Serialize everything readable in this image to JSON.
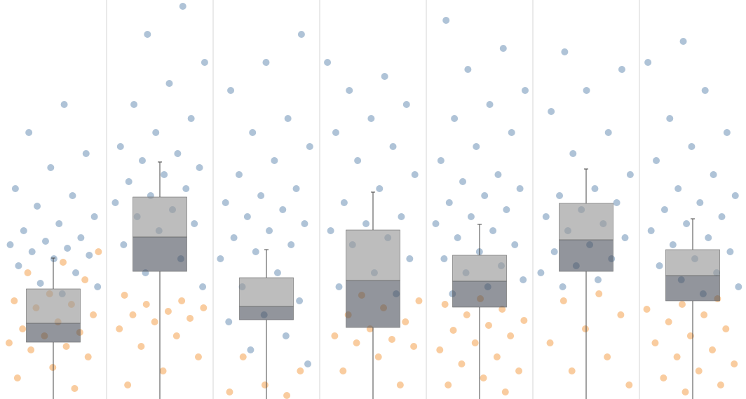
{
  "chart_data": {
    "type": "box",
    "ylim": [
      0,
      569
    ],
    "panels": [
      {
        "box": {
          "whisker_low": 0,
          "q1": 81,
          "median": 108,
          "q3": 157,
          "whisker_high": 201
        },
        "series": [
          {
            "color": "#4e79a7",
            "values": [
              420,
              380,
              350,
              330,
              300,
              290,
              275,
              260,
              250,
              240,
              230,
              225,
              220,
              215,
              210,
              205,
              200,
              190,
              180,
              165,
              160,
              150
            ]
          },
          {
            "color": "#f28e2b",
            "values": [
              210,
              195,
              180,
              170,
              150,
              140,
              135,
              130,
              120,
              110,
              100,
              95,
              90,
              80,
              75,
              70,
              60,
              45,
              30,
              15
            ]
          }
        ]
      },
      {
        "box": {
          "whisker_low": 0,
          "q1": 182,
          "median": 231,
          "q3": 288,
          "whisker_high": 338
        },
        "series": [
          {
            "color": "#4e79a7",
            "values": [
              560,
              520,
              480,
              450,
              420,
              400,
              380,
              360,
              350,
              340,
              330,
              320,
              310,
              300,
              290,
              280,
              270,
              260,
              250,
              240,
              220,
              200,
              180,
              160
            ]
          },
          {
            "color": "#f28e2b",
            "values": [
              148,
              140,
              135,
              130,
              125,
              120,
              115,
              110,
              100,
              90,
              75,
              60,
              40,
              20
            ]
          }
        ]
      },
      {
        "box": {
          "whisker_low": 0,
          "q1": 113,
          "median": 132,
          "q3": 173,
          "whisker_high": 213
        },
        "series": [
          {
            "color": "#4e79a7",
            "values": [
              520,
              480,
              440,
              400,
              380,
              360,
              340,
              320,
              300,
              290,
              280,
              270,
              260,
              250,
              240,
              230,
              220,
              210,
              200,
              180,
              160,
              140,
              120,
              110,
              90,
              70,
              50
            ]
          },
          {
            "color": "#f28e2b",
            "values": [
              60,
              40,
              20,
              10,
              5
            ]
          }
        ]
      },
      {
        "box": {
          "whisker_low": 0,
          "q1": 102,
          "median": 169,
          "q3": 241,
          "whisker_high": 295
        },
        "series": [
          {
            "color": "#4e79a7",
            "values": [
              480,
              460,
              440,
              420,
              400,
              380,
              360,
              340,
              320,
              300,
              280,
              260,
              250,
              240,
              230,
              220,
              200,
              180,
              160,
              150
            ]
          },
          {
            "color": "#f28e2b",
            "values": [
              148,
              140,
              130,
              120,
              110,
              100,
              90,
              85,
              80,
              75,
              60,
              40,
              20
            ]
          }
        ]
      },
      {
        "box": {
          "whisker_low": 0,
          "q1": 131,
          "median": 168,
          "q3": 205,
          "whisker_high": 249
        },
        "series": [
          {
            "color": "#4e79a7",
            "values": [
              540,
              500,
              470,
              440,
              420,
              400,
              380,
              360,
              340,
              320,
              310,
              300,
              290,
              280,
              270,
              260,
              250,
              240,
              230,
              220,
              210,
              200,
              190,
              180,
              170,
              160,
              150
            ]
          },
          {
            "color": "#f28e2b",
            "values": [
              143,
              135,
              128,
              120,
              112,
              105,
              98,
              90,
              80,
              70,
              60,
              50,
              40,
              30,
              20,
              10
            ]
          }
        ]
      },
      {
        "box": {
          "whisker_low": 0,
          "q1": 182,
          "median": 227,
          "q3": 279,
          "whisker_high": 328
        },
        "series": [
          {
            "color": "#4e79a7",
            "values": [
              495,
              470,
              440,
              410,
              380,
              350,
              320,
              300,
              290,
              280,
              270,
              260,
              250,
              240,
              230,
              220,
              210,
              200,
              190,
              180,
              170,
              160
            ]
          },
          {
            "color": "#f28e2b",
            "values": [
              150,
              140,
              120,
              100,
              80,
              60,
              40,
              20
            ]
          }
        ]
      },
      {
        "box": {
          "whisker_low": 0,
          "q1": 140,
          "median": 176,
          "q3": 213,
          "whisker_high": 257
        },
        "series": [
          {
            "color": "#4e79a7",
            "values": [
              510,
              480,
              440,
              400,
              380,
              360,
              340,
              320,
              300,
              290,
              280,
              270,
              260,
              250,
              240,
              230,
              220,
              210,
              200,
              190,
              180,
              170,
              160,
              150
            ]
          },
          {
            "color": "#f28e2b",
            "values": [
              143,
              135,
              128,
              120,
              110,
              100,
              90,
              80,
              70,
              60,
              50,
              40,
              30,
              20,
              10
            ]
          }
        ]
      }
    ]
  }
}
